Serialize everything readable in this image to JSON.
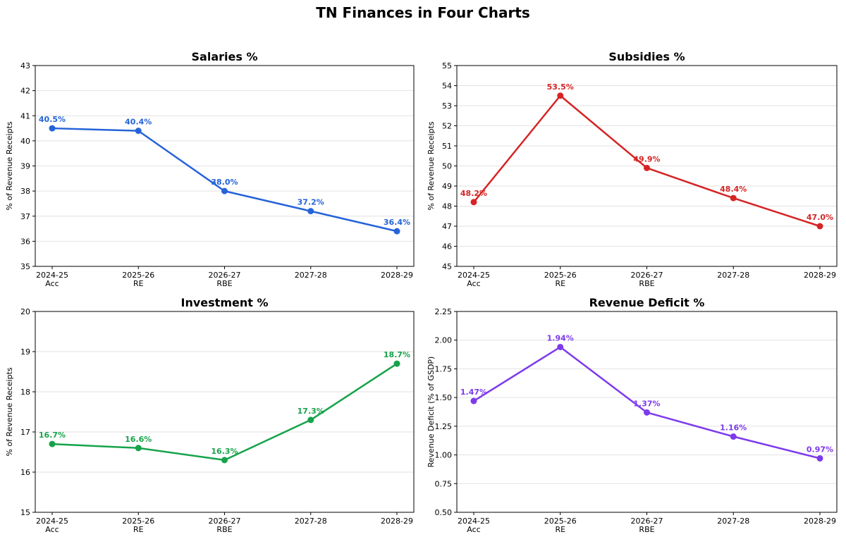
{
  "figure": {
    "title": "TN Finances in Four Charts"
  },
  "chart_data": [
    {
      "type": "line",
      "title": "Salaries %",
      "xlabel": "",
      "ylabel": "% of Revenue Receipts",
      "categories": [
        [
          "2024-25",
          "Acc"
        ],
        [
          "2025-26",
          "RE"
        ],
        [
          "2026-27",
          "RBE"
        ],
        [
          "2027-28"
        ],
        [
          "2028-29"
        ]
      ],
      "values": [
        40.5,
        40.4,
        38.0,
        37.2,
        36.4
      ],
      "labels": [
        "40.5%",
        "40.4%",
        "38.0%",
        "37.2%",
        "36.4%"
      ],
      "ylim": [
        35,
        43
      ],
      "yticks": [
        35,
        36,
        37,
        38,
        39,
        40,
        41,
        42,
        43
      ],
      "ytick_labels": [
        "35",
        "36",
        "37",
        "38",
        "39",
        "40",
        "41",
        "42",
        "43"
      ],
      "color": "#2563d9",
      "grid": true
    },
    {
      "type": "line",
      "title": "Subsidies %",
      "xlabel": "",
      "ylabel": "% of Revenue Receipts",
      "categories": [
        [
          "2024-25",
          "Acc"
        ],
        [
          "2025-26",
          "RE"
        ],
        [
          "2026-27",
          "RBE"
        ],
        [
          "2027-28"
        ],
        [
          "2028-29"
        ]
      ],
      "values": [
        48.2,
        53.5,
        49.9,
        48.4,
        47.0
      ],
      "labels": [
        "48.2%",
        "53.5%",
        "49.9%",
        "48.4%",
        "47.0%"
      ],
      "ylim": [
        45,
        55
      ],
      "yticks": [
        45,
        46,
        47,
        48,
        49,
        50,
        51,
        52,
        53,
        54,
        55
      ],
      "ytick_labels": [
        "45",
        "46",
        "47",
        "48",
        "49",
        "50",
        "51",
        "52",
        "53",
        "54",
        "55"
      ],
      "color": "#d62424",
      "grid": true
    },
    {
      "type": "line",
      "title": "Investment %",
      "xlabel": "",
      "ylabel": "% of Revenue Receipts",
      "categories": [
        [
          "2024-25",
          "Acc"
        ],
        [
          "2025-26",
          "RE"
        ],
        [
          "2026-27",
          "RBE"
        ],
        [
          "2027-28"
        ],
        [
          "2028-29"
        ]
      ],
      "values": [
        16.7,
        16.6,
        16.3,
        17.3,
        18.7
      ],
      "labels": [
        "16.7%",
        "16.6%",
        "16.3%",
        "17.3%",
        "18.7%"
      ],
      "ylim": [
        15,
        20
      ],
      "yticks": [
        15,
        16,
        17,
        18,
        19,
        20
      ],
      "ytick_labels": [
        "15",
        "16",
        "17",
        "18",
        "19",
        "20"
      ],
      "color": "#16a34a",
      "grid": true
    },
    {
      "type": "line",
      "title": "Revenue Deficit %",
      "xlabel": "",
      "ylabel": "Revenue Deficit (% of GSDP)",
      "categories": [
        [
          "2024-25",
          "Acc"
        ],
        [
          "2025-26",
          "RE"
        ],
        [
          "2026-27",
          "RBE"
        ],
        [
          "2027-28"
        ],
        [
          "2028-29"
        ]
      ],
      "values": [
        1.47,
        1.94,
        1.37,
        1.16,
        0.97
      ],
      "labels": [
        "1.47%",
        "1.94%",
        "1.37%",
        "1.16%",
        "0.97%"
      ],
      "ylim": [
        0.5,
        2.25
      ],
      "yticks": [
        0.5,
        0.75,
        1.0,
        1.25,
        1.5,
        1.75,
        2.0,
        2.25
      ],
      "ytick_labels": [
        "0.50",
        "0.75",
        "1.00",
        "1.25",
        "1.50",
        "1.75",
        "2.00",
        "2.25"
      ],
      "color": "#7c3aed",
      "grid": true
    }
  ]
}
